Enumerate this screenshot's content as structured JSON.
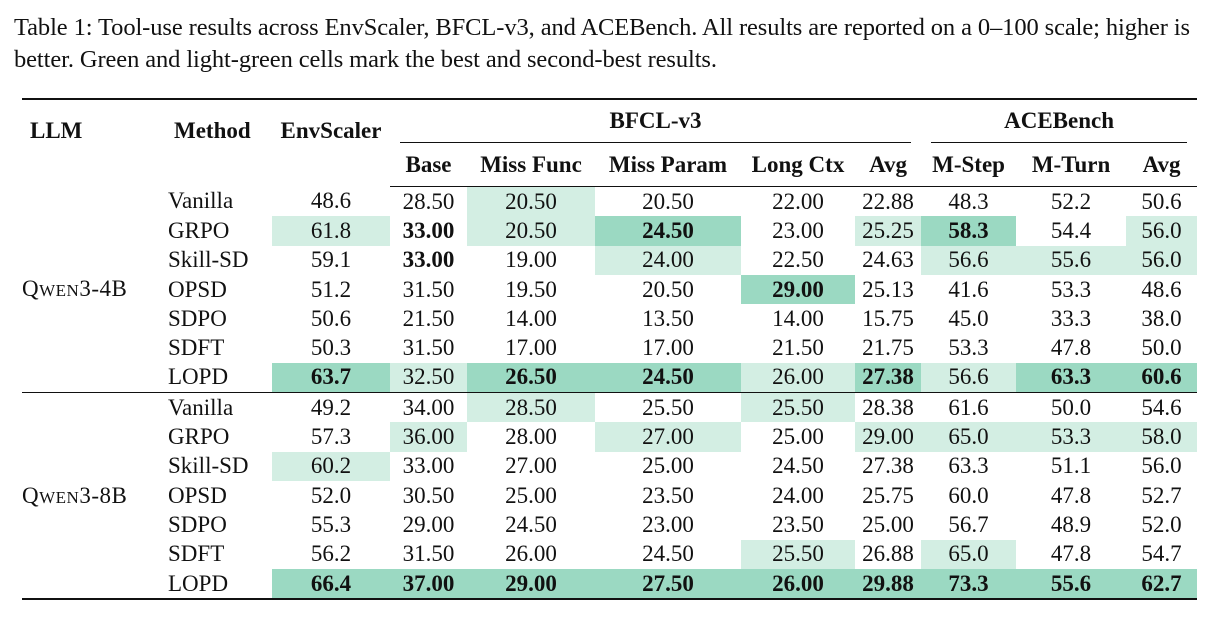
{
  "caption": "Table 1: Tool-use results across EnvScaler, BFCL-v3, and ACEBench. All results are reported on a 0–100 scale; higher is better. Green and light-green cells mark the best and second-best results.",
  "headers": {
    "llm": "LLM",
    "method": "Method",
    "envscaler": "EnvScaler",
    "bfcl": "BFCL-v3",
    "acebench": "ACEBench",
    "bfcl_cols": [
      "Base",
      "Miss Func",
      "Miss Param",
      "Long Ctx",
      "Avg"
    ],
    "ace_cols": [
      "M-Step",
      "M-Turn",
      "Avg"
    ]
  },
  "legend": {
    "best_color": "#9bd9c2",
    "second_color": "#d3eee3"
  },
  "groups": [
    {
      "llm_initial": "Q",
      "llm_smallcaps": "WEN",
      "llm_rest": "3-4B",
      "rows": [
        {
          "method": "Vanilla",
          "cells": [
            {
              "v": "48.6",
              "s": ""
            },
            {
              "v": "28.50",
              "s": ""
            },
            {
              "v": "20.50",
              "s": "second"
            },
            {
              "v": "20.50",
              "s": ""
            },
            {
              "v": "22.00",
              "s": ""
            },
            {
              "v": "22.88",
              "s": ""
            },
            {
              "v": "48.3",
              "s": ""
            },
            {
              "v": "52.2",
              "s": ""
            },
            {
              "v": "50.6",
              "s": ""
            }
          ]
        },
        {
          "method": "GRPO",
          "cells": [
            {
              "v": "61.8",
              "s": "second"
            },
            {
              "v": "33.00",
              "s": "bold"
            },
            {
              "v": "20.50",
              "s": "second"
            },
            {
              "v": "24.50",
              "s": "best"
            },
            {
              "v": "23.00",
              "s": ""
            },
            {
              "v": "25.25",
              "s": "second"
            },
            {
              "v": "58.3",
              "s": "best"
            },
            {
              "v": "54.4",
              "s": ""
            },
            {
              "v": "56.0",
              "s": "second"
            }
          ]
        },
        {
          "method": "Skill-SD",
          "cells": [
            {
              "v": "59.1",
              "s": ""
            },
            {
              "v": "33.00",
              "s": "bold"
            },
            {
              "v": "19.00",
              "s": ""
            },
            {
              "v": "24.00",
              "s": "second"
            },
            {
              "v": "22.50",
              "s": ""
            },
            {
              "v": "24.63",
              "s": ""
            },
            {
              "v": "56.6",
              "s": "second"
            },
            {
              "v": "55.6",
              "s": "second"
            },
            {
              "v": "56.0",
              "s": "second"
            }
          ]
        },
        {
          "method": "OPSD",
          "cells": [
            {
              "v": "51.2",
              "s": ""
            },
            {
              "v": "31.50",
              "s": ""
            },
            {
              "v": "19.50",
              "s": ""
            },
            {
              "v": "20.50",
              "s": ""
            },
            {
              "v": "29.00",
              "s": "best"
            },
            {
              "v": "25.13",
              "s": ""
            },
            {
              "v": "41.6",
              "s": ""
            },
            {
              "v": "53.3",
              "s": ""
            },
            {
              "v": "48.6",
              "s": ""
            }
          ]
        },
        {
          "method": "SDPO",
          "cells": [
            {
              "v": "50.6",
              "s": ""
            },
            {
              "v": "21.50",
              "s": ""
            },
            {
              "v": "14.00",
              "s": ""
            },
            {
              "v": "13.50",
              "s": ""
            },
            {
              "v": "14.00",
              "s": ""
            },
            {
              "v": "15.75",
              "s": ""
            },
            {
              "v": "45.0",
              "s": ""
            },
            {
              "v": "33.3",
              "s": ""
            },
            {
              "v": "38.0",
              "s": ""
            }
          ]
        },
        {
          "method": "SDFT",
          "cells": [
            {
              "v": "50.3",
              "s": ""
            },
            {
              "v": "31.50",
              "s": ""
            },
            {
              "v": "17.00",
              "s": ""
            },
            {
              "v": "17.00",
              "s": ""
            },
            {
              "v": "21.50",
              "s": ""
            },
            {
              "v": "21.75",
              "s": ""
            },
            {
              "v": "53.3",
              "s": ""
            },
            {
              "v": "47.8",
              "s": ""
            },
            {
              "v": "50.0",
              "s": ""
            }
          ]
        },
        {
          "method": "LOPD",
          "cells": [
            {
              "v": "63.7",
              "s": "best"
            },
            {
              "v": "32.50",
              "s": "second"
            },
            {
              "v": "26.50",
              "s": "best"
            },
            {
              "v": "24.50",
              "s": "best"
            },
            {
              "v": "26.00",
              "s": "second"
            },
            {
              "v": "27.38",
              "s": "best"
            },
            {
              "v": "56.6",
              "s": "second"
            },
            {
              "v": "63.3",
              "s": "best"
            },
            {
              "v": "60.6",
              "s": "best"
            }
          ]
        }
      ]
    },
    {
      "llm_initial": "Q",
      "llm_smallcaps": "WEN",
      "llm_rest": "3-8B",
      "rows": [
        {
          "method": "Vanilla",
          "cells": [
            {
              "v": "49.2",
              "s": ""
            },
            {
              "v": "34.00",
              "s": ""
            },
            {
              "v": "28.50",
              "s": "second"
            },
            {
              "v": "25.50",
              "s": ""
            },
            {
              "v": "25.50",
              "s": "second"
            },
            {
              "v": "28.38",
              "s": ""
            },
            {
              "v": "61.6",
              "s": ""
            },
            {
              "v": "50.0",
              "s": ""
            },
            {
              "v": "54.6",
              "s": ""
            }
          ]
        },
        {
          "method": "GRPO",
          "cells": [
            {
              "v": "57.3",
              "s": ""
            },
            {
              "v": "36.00",
              "s": "second"
            },
            {
              "v": "28.00",
              "s": ""
            },
            {
              "v": "27.00",
              "s": "second"
            },
            {
              "v": "25.00",
              "s": ""
            },
            {
              "v": "29.00",
              "s": "second"
            },
            {
              "v": "65.0",
              "s": "second"
            },
            {
              "v": "53.3",
              "s": "second"
            },
            {
              "v": "58.0",
              "s": "second"
            }
          ]
        },
        {
          "method": "Skill-SD",
          "cells": [
            {
              "v": "60.2",
              "s": "second"
            },
            {
              "v": "33.00",
              "s": ""
            },
            {
              "v": "27.00",
              "s": ""
            },
            {
              "v": "25.00",
              "s": ""
            },
            {
              "v": "24.50",
              "s": ""
            },
            {
              "v": "27.38",
              "s": ""
            },
            {
              "v": "63.3",
              "s": ""
            },
            {
              "v": "51.1",
              "s": ""
            },
            {
              "v": "56.0",
              "s": ""
            }
          ]
        },
        {
          "method": "OPSD",
          "cells": [
            {
              "v": "52.0",
              "s": ""
            },
            {
              "v": "30.50",
              "s": ""
            },
            {
              "v": "25.00",
              "s": ""
            },
            {
              "v": "23.50",
              "s": ""
            },
            {
              "v": "24.00",
              "s": ""
            },
            {
              "v": "25.75",
              "s": ""
            },
            {
              "v": "60.0",
              "s": ""
            },
            {
              "v": "47.8",
              "s": ""
            },
            {
              "v": "52.7",
              "s": ""
            }
          ]
        },
        {
          "method": "SDPO",
          "cells": [
            {
              "v": "55.3",
              "s": ""
            },
            {
              "v": "29.00",
              "s": ""
            },
            {
              "v": "24.50",
              "s": ""
            },
            {
              "v": "23.00",
              "s": ""
            },
            {
              "v": "23.50",
              "s": ""
            },
            {
              "v": "25.00",
              "s": ""
            },
            {
              "v": "56.7",
              "s": ""
            },
            {
              "v": "48.9",
              "s": ""
            },
            {
              "v": "52.0",
              "s": ""
            }
          ]
        },
        {
          "method": "SDFT",
          "cells": [
            {
              "v": "56.2",
              "s": ""
            },
            {
              "v": "31.50",
              "s": ""
            },
            {
              "v": "26.00",
              "s": ""
            },
            {
              "v": "24.50",
              "s": ""
            },
            {
              "v": "25.50",
              "s": "second"
            },
            {
              "v": "26.88",
              "s": ""
            },
            {
              "v": "65.0",
              "s": "second"
            },
            {
              "v": "47.8",
              "s": ""
            },
            {
              "v": "54.7",
              "s": ""
            }
          ]
        },
        {
          "method": "LOPD",
          "cells": [
            {
              "v": "66.4",
              "s": "best"
            },
            {
              "v": "37.00",
              "s": "best"
            },
            {
              "v": "29.00",
              "s": "best"
            },
            {
              "v": "27.50",
              "s": "best"
            },
            {
              "v": "26.00",
              "s": "best"
            },
            {
              "v": "29.88",
              "s": "best"
            },
            {
              "v": "73.3",
              "s": "best"
            },
            {
              "v": "55.6",
              "s": "best"
            },
            {
              "v": "62.7",
              "s": "best"
            }
          ]
        }
      ]
    }
  ]
}
